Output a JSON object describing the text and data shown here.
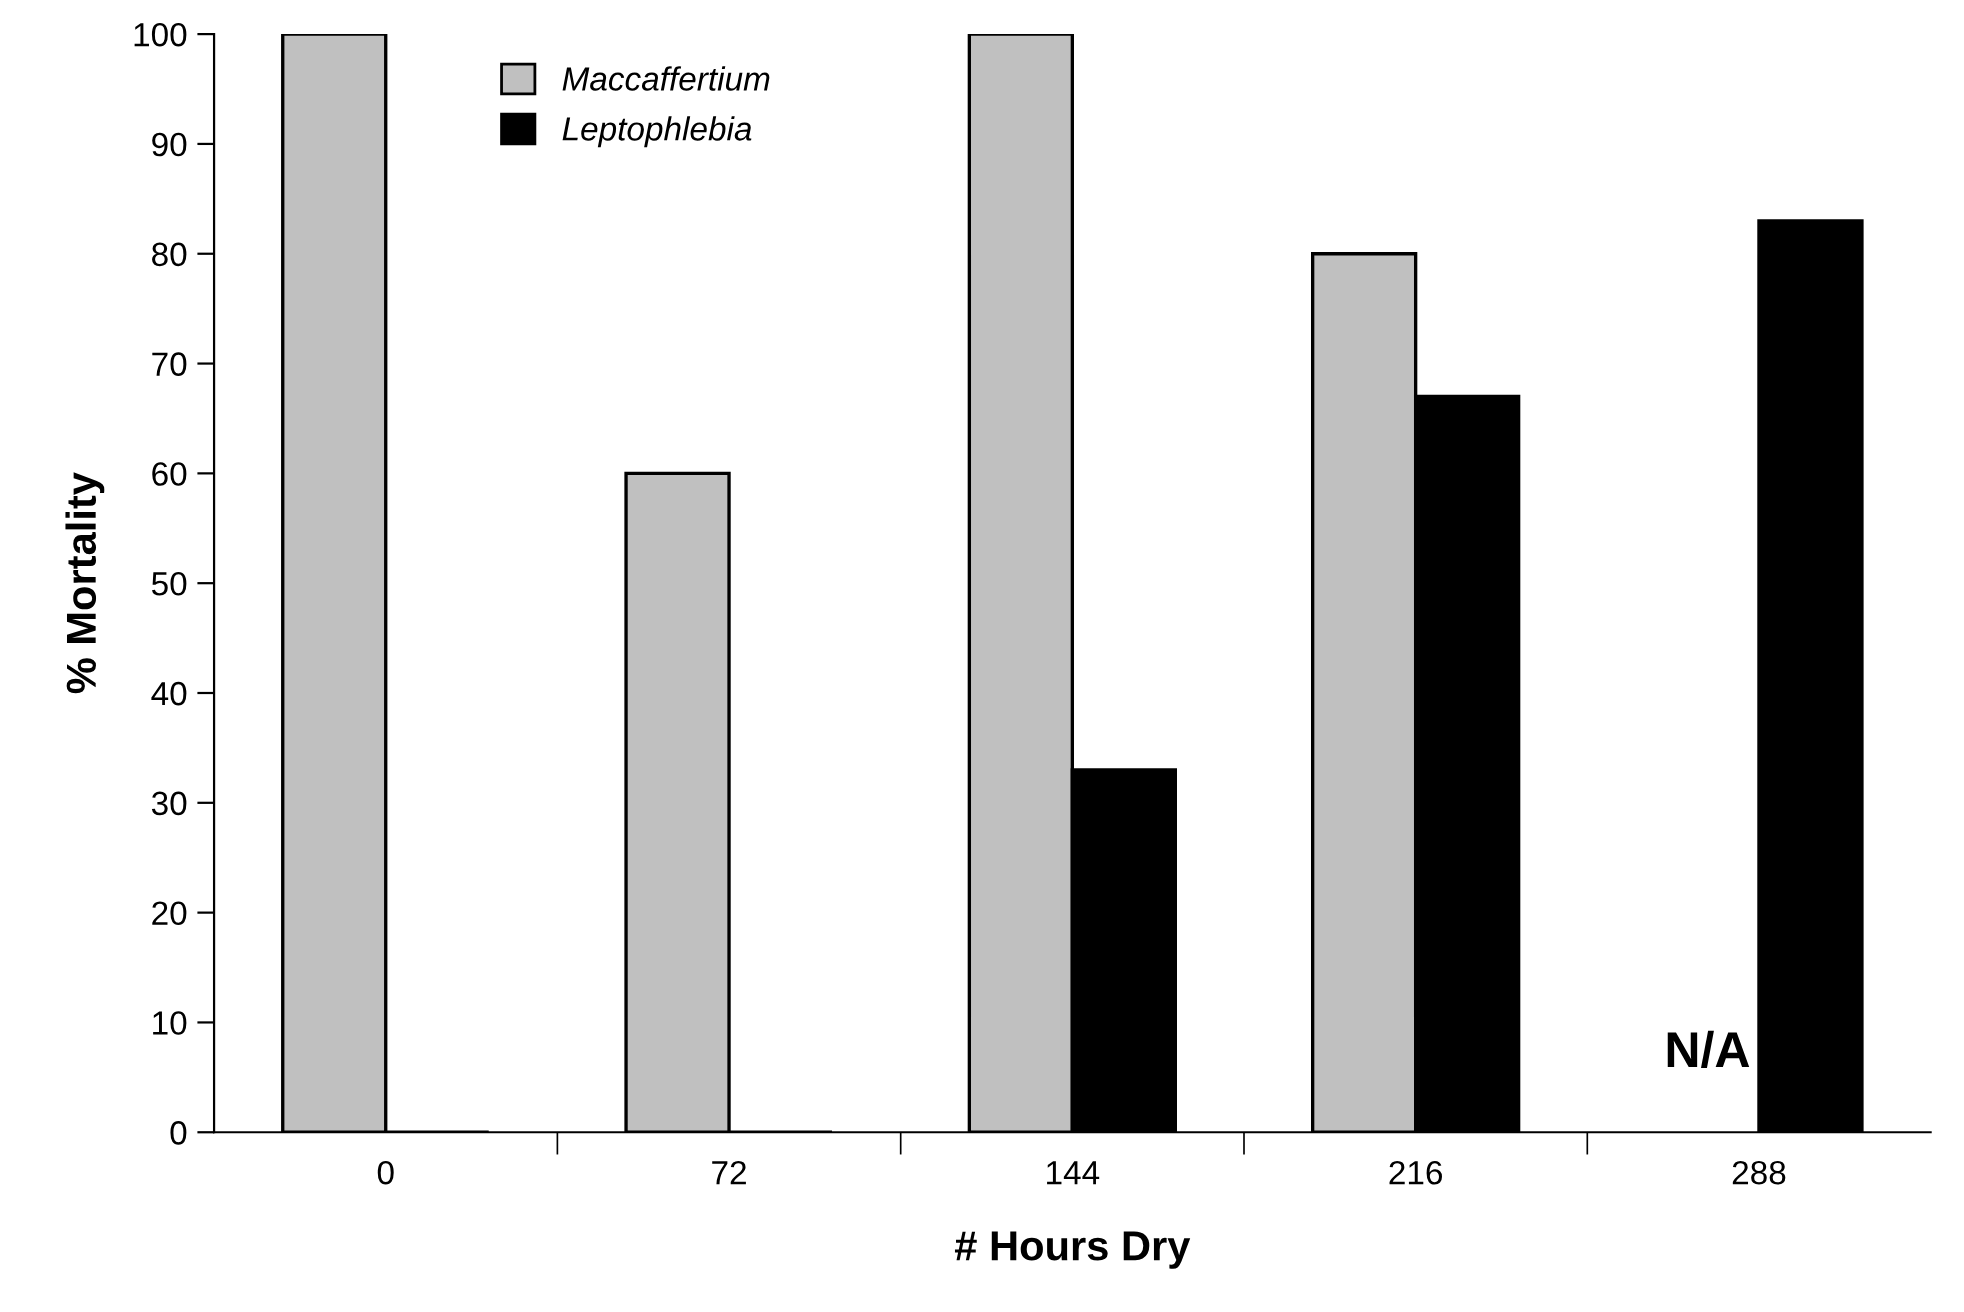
{
  "chart_data": {
    "type": "bar",
    "xlabel": "# Hours Dry",
    "ylabel": "% Mortality",
    "categories": [
      "0",
      "72",
      "144",
      "216",
      "288"
    ],
    "series": [
      {
        "name": "Maccaffertium",
        "color": "#c0c0c0",
        "values": [
          100,
          60,
          100,
          80,
          null
        ]
      },
      {
        "name": "Leptophlebia",
        "color": "#000000",
        "values": [
          0,
          0,
          33,
          67,
          83
        ]
      }
    ],
    "ylim": [
      0,
      100
    ],
    "yticks": [
      0,
      10,
      20,
      30,
      40,
      50,
      60,
      70,
      80,
      90,
      100
    ],
    "grid": false,
    "legend": "top left",
    "annotations": [
      {
        "text": "N/A",
        "x": "288",
        "y": 5
      }
    ]
  }
}
